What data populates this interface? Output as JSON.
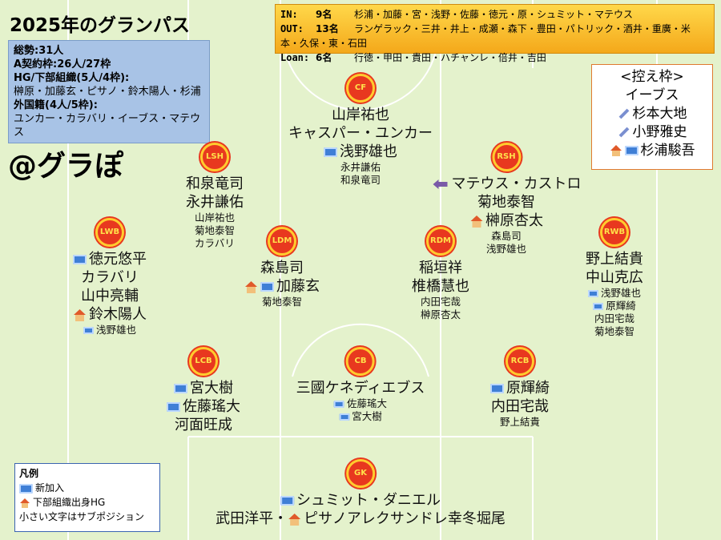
{
  "title": "2025年のグランパス",
  "summary": [
    "総勢:31人",
    "A契約枠:26人/27枠",
    "HG/下部組織(5人/4枠):",
    "榊原・加藤玄・ピサノ・鈴木陽人・杉浦",
    "外国籍(4人/5枠):",
    "ユンカー・カラバリ・イーブス・マテウス"
  ],
  "handle": "@グラぽ",
  "transfers": [
    {
      "label": "IN:",
      "count": "9名",
      "names": "杉浦・加藤・宮・浅野・佐藤・徳元・原・シュミット・マテウス"
    },
    {
      "label": "OUT:",
      "count": "13名",
      "names": "ランゲラック・三井・井上・成瀬・森下・豊田・パトリック・酒井・重廣・米本・久保・東・石田"
    },
    {
      "label": "Loan:",
      "count": "6名",
      "names": "行徳・甲田・貴田・ハチャンレ・倍井・吉田"
    }
  ],
  "reserve": {
    "title": "<控え枠>",
    "players": [
      "イーブス",
      "杉本大地",
      "小野雅史",
      "杉浦駿吾"
    ]
  },
  "positions": [
    {
      "badge": "CF",
      "main": [
        "山岸祐也",
        "キャスパー・ユンカー",
        "浅野雄也"
      ],
      "sub": [
        "永井謙佑",
        "和泉竜司"
      ]
    },
    {
      "badge": "LSH",
      "main": [
        "和泉竜司",
        "永井謙佑"
      ],
      "sub": [
        "山岸祐也",
        "菊地泰智",
        "カラバリ"
      ]
    },
    {
      "badge": "RSH",
      "main": [
        "マテウス・カストロ",
        "菊地泰智",
        "榊原杏太"
      ],
      "sub": [
        "森島司",
        "浅野雄也"
      ]
    },
    {
      "badge": "LWB",
      "main": [
        "徳元悠平",
        "カラバリ",
        "山中亮輔",
        "鈴木陽人"
      ],
      "sub": [
        "浅野雄也"
      ]
    },
    {
      "badge": "LDM",
      "main": [
        "森島司",
        "加藤玄"
      ],
      "sub": [
        "菊地泰智"
      ]
    },
    {
      "badge": "RDM",
      "main": [
        "稲垣祥",
        "椎橋慧也"
      ],
      "sub": [
        "内田宅哉",
        "榊原杏太"
      ]
    },
    {
      "badge": "RWB",
      "main": [
        "野上結貴",
        "中山克広"
      ],
      "sub": [
        "浅野雄也",
        "原輝綺",
        "内田宅哉",
        "菊地泰智"
      ]
    },
    {
      "badge": "LCB",
      "main": [
        "宮大樹",
        "佐藤瑤大",
        "河面旺成"
      ],
      "sub": []
    },
    {
      "badge": "CB",
      "main": [
        "三國ケネディエブス"
      ],
      "sub": [
        "佐藤瑤大",
        "宮大樹"
      ]
    },
    {
      "badge": "RCB",
      "main": [
        "原輝綺",
        "内田宅哉"
      ],
      "sub": [
        "野上結貴"
      ]
    },
    {
      "badge": "GK",
      "main": [
        "シュミット・ダニエル",
        "武田洋平・",
        "ピサノアレクサンドレ幸冬堀尾"
      ],
      "sub": []
    }
  ],
  "legend": {
    "title": "凡例",
    "items": [
      "新加入",
      "下部組織出身HG",
      "小さい文字はサブポジション"
    ]
  }
}
